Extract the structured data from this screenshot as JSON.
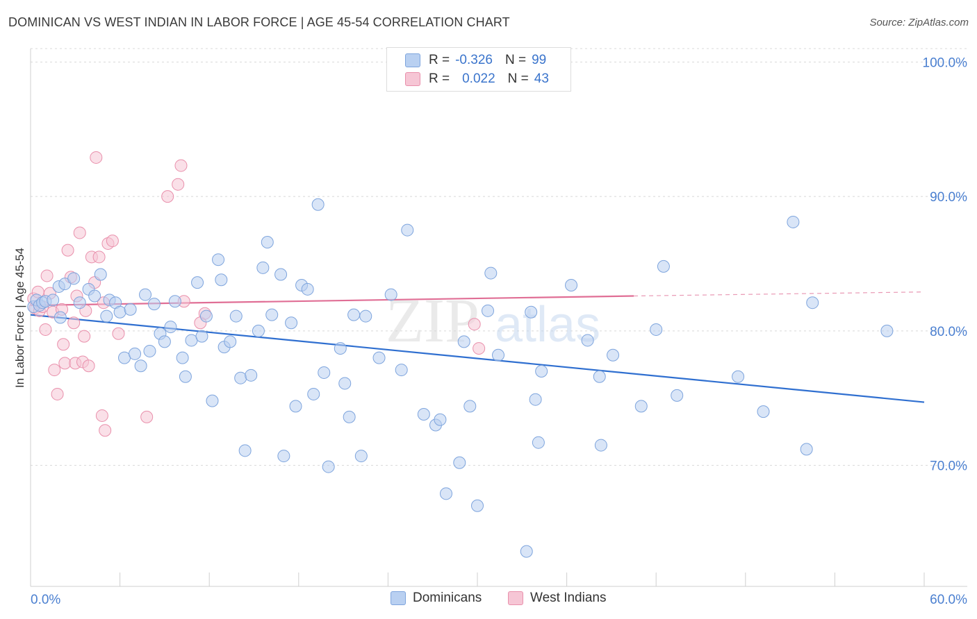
{
  "header": {
    "title": "DOMINICAN VS WEST INDIAN IN LABOR FORCE | AGE 45-54 CORRELATION CHART",
    "source": "Source: ZipAtlas.com"
  },
  "legend": {
    "rows": [
      {
        "r_label": "R =",
        "r_value": "-0.326",
        "n_label": "N =",
        "n_value": "99"
      },
      {
        "r_label": "R =",
        "r_value": "0.022",
        "n_label": "N =",
        "n_value": "43"
      }
    ]
  },
  "bottom_legend": {
    "items": [
      "Dominicans",
      "West Indians"
    ]
  },
  "colors": {
    "blue_fill": "#b9d0f1",
    "blue_stroke": "#7da4dd",
    "blue_line": "#2f6fd0",
    "pink_fill": "#f6c6d5",
    "pink_stroke": "#e98fab",
    "pink_line": "#e06e95",
    "grid": "#d8d8d8",
    "axis_label": "#4a7fd0"
  },
  "watermark": {
    "zip": "ZIP",
    "atlas": "atlas"
  },
  "chart_data": {
    "type": "scatter",
    "title": "DOMINICAN VS WEST INDIAN IN LABOR FORCE | AGE 45-54 CORRELATION CHART",
    "xlabel": "",
    "ylabel": "In Labor Force | Age 45-54",
    "xlim": [
      0,
      60
    ],
    "ylim": [
      61,
      101
    ],
    "x_tick_labels": [
      "0.0%",
      "60.0%"
    ],
    "y_ticks": [
      70,
      80,
      90,
      100
    ],
    "y_tick_labels": [
      "70.0%",
      "80.0%",
      "90.0%",
      "100.0%"
    ],
    "grid": true,
    "series": [
      {
        "name": "Dominicans",
        "color": "#b9d0f1",
        "trend": {
          "x": [
            0,
            60
          ],
          "y": [
            81.2,
            74.7
          ],
          "dashed_from": null
        },
        "points": [
          [
            0.2,
            81.8
          ],
          [
            0.4,
            82.3
          ],
          [
            0.6,
            81.9
          ],
          [
            0.8,
            82.1
          ],
          [
            1.0,
            82.2
          ],
          [
            1.5,
            82.3
          ],
          [
            1.9,
            83.3
          ],
          [
            2.0,
            81.0
          ],
          [
            2.3,
            83.5
          ],
          [
            2.9,
            83.9
          ],
          [
            3.3,
            82.1
          ],
          [
            3.9,
            83.1
          ],
          [
            4.3,
            82.6
          ],
          [
            4.7,
            84.2
          ],
          [
            5.1,
            81.1
          ],
          [
            5.3,
            82.3
          ],
          [
            5.7,
            82.1
          ],
          [
            6.0,
            81.4
          ],
          [
            6.3,
            78.0
          ],
          [
            6.7,
            81.6
          ],
          [
            7.0,
            78.3
          ],
          [
            7.4,
            77.4
          ],
          [
            7.7,
            82.7
          ],
          [
            8.0,
            78.5
          ],
          [
            8.3,
            82.0
          ],
          [
            8.7,
            79.8
          ],
          [
            9.0,
            79.2
          ],
          [
            9.4,
            80.3
          ],
          [
            9.7,
            82.2
          ],
          [
            10.2,
            78.0
          ],
          [
            10.4,
            76.6
          ],
          [
            10.8,
            79.3
          ],
          [
            11.2,
            83.6
          ],
          [
            11.5,
            79.6
          ],
          [
            11.8,
            81.1
          ],
          [
            12.2,
            74.8
          ],
          [
            12.6,
            85.3
          ],
          [
            12.8,
            83.8
          ],
          [
            13.0,
            78.8
          ],
          [
            13.4,
            79.2
          ],
          [
            13.8,
            81.1
          ],
          [
            14.1,
            76.5
          ],
          [
            14.4,
            71.1
          ],
          [
            14.8,
            76.7
          ],
          [
            15.3,
            80.0
          ],
          [
            15.6,
            84.7
          ],
          [
            15.9,
            86.6
          ],
          [
            16.2,
            81.2
          ],
          [
            16.8,
            84.2
          ],
          [
            17.0,
            70.7
          ],
          [
            17.5,
            80.6
          ],
          [
            17.8,
            74.4
          ],
          [
            18.2,
            83.4
          ],
          [
            18.6,
            83.1
          ],
          [
            19.0,
            75.3
          ],
          [
            19.3,
            89.4
          ],
          [
            19.7,
            76.9
          ],
          [
            20.0,
            69.9
          ],
          [
            20.8,
            78.7
          ],
          [
            21.1,
            76.1
          ],
          [
            21.4,
            73.6
          ],
          [
            21.7,
            81.2
          ],
          [
            22.2,
            70.7
          ],
          [
            22.5,
            81.1
          ],
          [
            23.4,
            78.0
          ],
          [
            24.2,
            82.7
          ],
          [
            24.9,
            77.1
          ],
          [
            25.3,
            87.5
          ],
          [
            26.4,
            73.8
          ],
          [
            27.2,
            73.0
          ],
          [
            27.5,
            73.4
          ],
          [
            27.9,
            67.9
          ],
          [
            28.8,
            70.2
          ],
          [
            29.1,
            79.2
          ],
          [
            29.5,
            74.4
          ],
          [
            30.0,
            67.0
          ],
          [
            30.7,
            81.5
          ],
          [
            30.9,
            84.3
          ],
          [
            31.4,
            78.2
          ],
          [
            33.3,
            63.6
          ],
          [
            33.6,
            81.4
          ],
          [
            33.9,
            74.9
          ],
          [
            34.1,
            71.7
          ],
          [
            34.3,
            77.0
          ],
          [
            36.3,
            83.4
          ],
          [
            37.4,
            79.3
          ],
          [
            38.2,
            76.6
          ],
          [
            38.3,
            71.5
          ],
          [
            39.1,
            78.2
          ],
          [
            41.0,
            74.4
          ],
          [
            42.0,
            80.1
          ],
          [
            42.5,
            84.8
          ],
          [
            43.4,
            75.2
          ],
          [
            47.5,
            76.6
          ],
          [
            49.2,
            74.0
          ],
          [
            51.2,
            88.1
          ],
          [
            52.1,
            71.2
          ],
          [
            52.5,
            82.1
          ],
          [
            57.5,
            80.0
          ]
        ]
      },
      {
        "name": "West Indians",
        "color": "#f6c6d5",
        "trend": {
          "x": [
            0,
            40.5
          ],
          "y": [
            81.9,
            82.6
          ],
          "dashed_from": 40.5,
          "dashed_to_x": 60,
          "dashed_to_y": 82.9
        },
        "points": [
          [
            0.2,
            82.4
          ],
          [
            0.3,
            81.7
          ],
          [
            0.5,
            82.9
          ],
          [
            0.6,
            81.5
          ],
          [
            0.8,
            81.8
          ],
          [
            1.0,
            80.1
          ],
          [
            1.1,
            84.1
          ],
          [
            1.3,
            82.8
          ],
          [
            1.5,
            81.4
          ],
          [
            1.6,
            77.1
          ],
          [
            1.8,
            75.3
          ],
          [
            2.1,
            81.6
          ],
          [
            2.2,
            79.0
          ],
          [
            2.3,
            77.6
          ],
          [
            2.5,
            86.0
          ],
          [
            2.7,
            84.0
          ],
          [
            2.9,
            80.6
          ],
          [
            3.0,
            77.6
          ],
          [
            3.1,
            82.6
          ],
          [
            3.3,
            87.3
          ],
          [
            3.5,
            77.7
          ],
          [
            3.6,
            79.6
          ],
          [
            3.7,
            81.5
          ],
          [
            3.9,
            77.4
          ],
          [
            4.1,
            85.5
          ],
          [
            4.3,
            83.6
          ],
          [
            4.4,
            92.9
          ],
          [
            4.6,
            85.5
          ],
          [
            4.8,
            73.7
          ],
          [
            4.9,
            82.1
          ],
          [
            5.0,
            72.6
          ],
          [
            5.2,
            86.5
          ],
          [
            5.5,
            86.7
          ],
          [
            5.9,
            79.8
          ],
          [
            7.8,
            73.6
          ],
          [
            9.2,
            90.0
          ],
          [
            9.9,
            90.9
          ],
          [
            10.1,
            92.3
          ],
          [
            10.3,
            82.2
          ],
          [
            11.4,
            80.6
          ],
          [
            11.7,
            81.3
          ],
          [
            29.8,
            80.5
          ],
          [
            30.1,
            78.7
          ]
        ]
      }
    ]
  }
}
